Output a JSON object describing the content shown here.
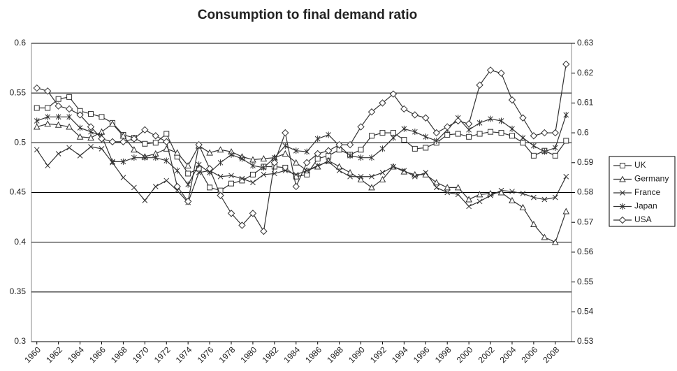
{
  "chart_data": {
    "type": "line",
    "title": "Consumption to final demand ratio",
    "x": [
      1960,
      1961,
      1962,
      1963,
      1964,
      1965,
      1966,
      1967,
      1968,
      1969,
      1970,
      1971,
      1972,
      1973,
      1974,
      1975,
      1976,
      1977,
      1978,
      1979,
      1980,
      1981,
      1982,
      1983,
      1984,
      1985,
      1986,
      1987,
      1988,
      1989,
      1990,
      1991,
      1992,
      1993,
      1994,
      1995,
      1996,
      1997,
      1998,
      1999,
      2000,
      2001,
      2002,
      2003,
      2004,
      2005,
      2006,
      2007,
      2008,
      2009
    ],
    "xlim": [
      1959.5,
      2009.5
    ],
    "xticks": [
      1960,
      1962,
      1964,
      1966,
      1968,
      1970,
      1972,
      1974,
      1976,
      1978,
      1980,
      1982,
      1984,
      1986,
      1988,
      1990,
      1992,
      1994,
      1996,
      1998,
      2000,
      2002,
      2004,
      2006,
      2008
    ],
    "ylim": [
      0.3,
      0.6
    ],
    "yticks": [
      0.3,
      0.35,
      0.4,
      0.45,
      0.5,
      0.55,
      0.6
    ],
    "y2lim": [
      0.53,
      0.63
    ],
    "y2ticks": [
      0.53,
      0.54,
      0.55,
      0.56,
      0.57,
      0.58,
      0.59,
      0.6,
      0.61,
      0.62,
      0.63
    ],
    "grid": true,
    "legend": "right",
    "series": [
      {
        "name": "UK",
        "color": "#333333",
        "marker": "square",
        "values": [
          0.535,
          0.535,
          0.544,
          0.546,
          0.532,
          0.529,
          0.526,
          0.52,
          0.508,
          0.505,
          0.499,
          0.5,
          0.509,
          0.486,
          0.469,
          0.474,
          0.455,
          0.452,
          0.459,
          0.462,
          0.468,
          0.476,
          0.476,
          0.475,
          0.466,
          0.468,
          0.484,
          0.487,
          0.493,
          0.488,
          0.493,
          0.507,
          0.51,
          0.51,
          0.503,
          0.494,
          0.495,
          0.5,
          0.508,
          0.509,
          0.506,
          0.509,
          0.511,
          0.51,
          0.507,
          0.5,
          0.487,
          0.492,
          0.487,
          0.502
        ]
      },
      {
        "name": "Germany",
        "color": "#333333",
        "marker": "triangle",
        "values": [
          0.516,
          0.519,
          0.518,
          0.516,
          0.506,
          0.505,
          0.511,
          0.519,
          0.507,
          0.493,
          0.486,
          0.489,
          0.494,
          0.49,
          0.477,
          0.497,
          0.49,
          0.493,
          0.491,
          0.486,
          0.483,
          0.484,
          0.485,
          0.489,
          0.48,
          0.472,
          0.476,
          0.482,
          0.476,
          0.47,
          0.463,
          0.455,
          0.463,
          0.476,
          0.471,
          0.468,
          0.468,
          0.46,
          0.455,
          0.455,
          0.443,
          0.448,
          0.449,
          0.45,
          0.442,
          0.435,
          0.418,
          0.405,
          0.4,
          0.431
        ]
      },
      {
        "name": "France",
        "color": "#333333",
        "marker": "x",
        "values": [
          0.493,
          0.477,
          0.489,
          0.495,
          0.487,
          0.496,
          0.494,
          0.48,
          0.465,
          0.455,
          0.442,
          0.456,
          0.462,
          0.452,
          0.44,
          0.47,
          0.472,
          0.466,
          0.467,
          0.464,
          0.46,
          0.468,
          0.469,
          0.472,
          0.468,
          0.472,
          0.477,
          0.481,
          0.472,
          0.466,
          0.466,
          0.466,
          0.47,
          0.476,
          0.472,
          0.466,
          0.47,
          0.455,
          0.45,
          0.448,
          0.436,
          0.441,
          0.447,
          0.452,
          0.451,
          0.449,
          0.445,
          0.443,
          0.445,
          0.466
        ]
      },
      {
        "name": "Japan",
        "color": "#333333",
        "marker": "star",
        "values": [
          0.522,
          0.526,
          0.526,
          0.526,
          0.515,
          0.511,
          0.507,
          0.481,
          0.481,
          0.485,
          0.485,
          0.485,
          0.482,
          0.472,
          0.458,
          0.478,
          0.47,
          0.48,
          0.488,
          0.484,
          0.477,
          0.475,
          0.485,
          0.497,
          0.492,
          0.491,
          0.504,
          0.508,
          0.497,
          0.487,
          0.485,
          0.485,
          0.494,
          0.505,
          0.514,
          0.511,
          0.506,
          0.502,
          0.513,
          0.525,
          0.513,
          0.52,
          0.524,
          0.522,
          0.514,
          0.505,
          0.497,
          0.491,
          0.495,
          0.528
        ]
      },
      {
        "name": "USA",
        "color": "#333333",
        "marker": "diamond",
        "axis": "y2",
        "values": [
          0.615,
          0.614,
          0.609,
          0.608,
          0.606,
          0.602,
          0.598,
          0.597,
          0.597,
          0.598,
          0.601,
          0.599,
          0.597,
          0.582,
          0.577,
          0.596,
          0.588,
          0.579,
          0.573,
          0.569,
          0.573,
          0.567,
          0.59,
          0.6,
          0.582,
          0.59,
          0.593,
          0.594,
          0.596,
          0.596,
          0.602,
          0.607,
          0.61,
          0.613,
          0.608,
          0.606,
          0.605,
          0.6,
          0.602,
          0.604,
          0.603,
          0.616,
          0.621,
          0.62,
          0.611,
          0.605,
          0.599,
          0.6,
          0.6,
          0.623
        ]
      }
    ]
  }
}
